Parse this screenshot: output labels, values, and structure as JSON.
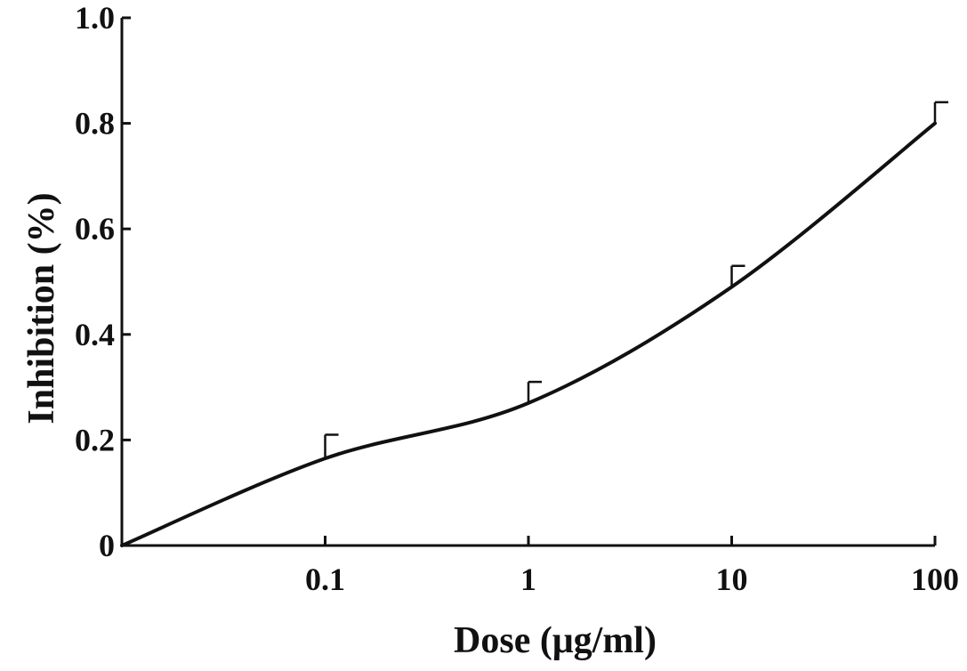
{
  "chart_data": {
    "type": "line",
    "xlabel": "Dose (μg/ml)",
    "ylabel": "Inhibition (%)",
    "x_scale": "log",
    "xlim": [
      0.01,
      100
    ],
    "ylim": [
      0,
      1.0
    ],
    "x_ticks": [
      {
        "value": 0.1,
        "label": "0.1"
      },
      {
        "value": 1,
        "label": "1"
      },
      {
        "value": 10,
        "label": "10"
      },
      {
        "value": 100,
        "label": "100"
      }
    ],
    "y_ticks": [
      {
        "value": 0,
        "label": "0"
      },
      {
        "value": 0.2,
        "label": "0.2"
      },
      {
        "value": 0.4,
        "label": "0.4"
      },
      {
        "value": 0.6,
        "label": "0.6"
      },
      {
        "value": 0.8,
        "label": "0.8"
      },
      {
        "value": 1.0,
        "label": "1.0"
      }
    ],
    "series": [
      {
        "x": [
          0.01,
          0.1,
          1,
          10,
          100
        ],
        "y": [
          0.0,
          0.165,
          0.27,
          0.49,
          0.8
        ],
        "error_upper": [
          null,
          0.21,
          0.31,
          0.53,
          0.84
        ]
      }
    ],
    "grid": false,
    "legend": "none"
  }
}
